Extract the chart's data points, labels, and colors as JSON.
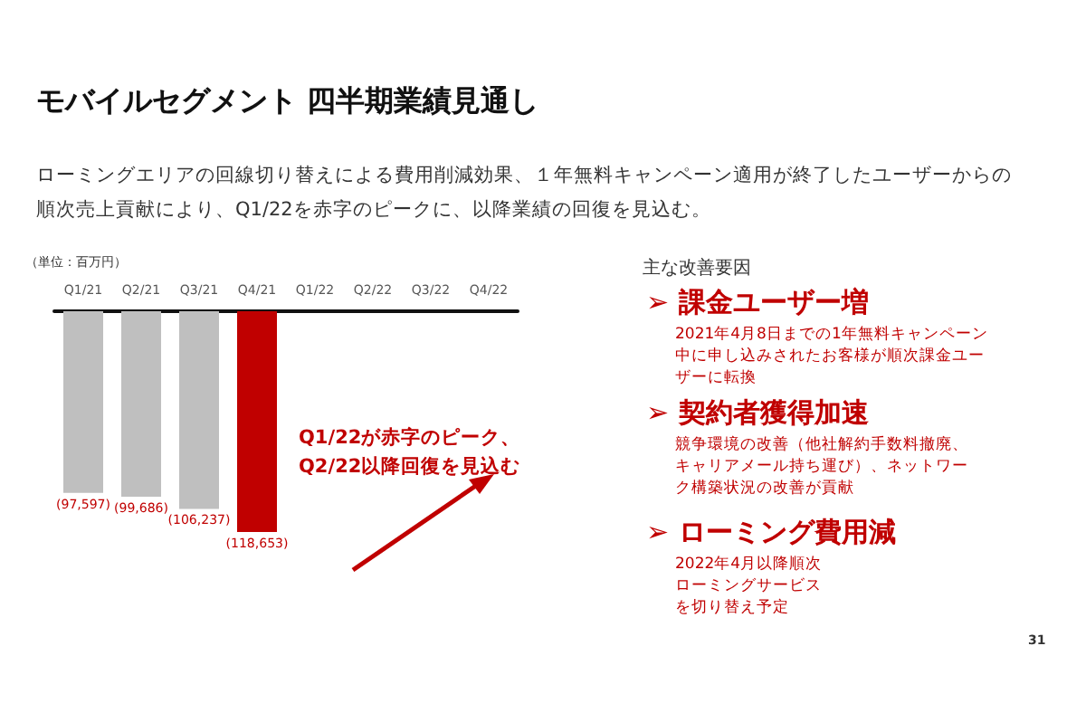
{
  "chart_data": {
    "type": "bar",
    "title": "モバイルセグメント 四半期業績見通し",
    "subtitle": "ローミングエリアの回線切り替えによる費用削減効果、１年無料キャンペーン適用が終了したユーザーからの順次売上貢献により、Q1/22を赤字のピークに、以降業績の回復を見込む。",
    "ylabel": "（単位：百万円）",
    "categories": [
      "Q1/21",
      "Q2/21",
      "Q3/21",
      "Q4/21",
      "Q1/22",
      "Q2/22",
      "Q3/22",
      "Q4/22"
    ],
    "values": [
      -97597,
      -99686,
      -106237,
      -118653,
      null,
      null,
      null,
      null
    ],
    "value_labels": [
      "(97,597)",
      "(99,686)",
      "(106,237)",
      "(118,653)",
      null,
      null,
      null,
      null
    ],
    "colors": [
      "#bfbfbf",
      "#bfbfbf",
      "#bfbfbf",
      "#c00000",
      null,
      null,
      null,
      null
    ],
    "grid": false,
    "annotations": [
      "Q1/22が赤字のピーク、Q2/22以降回復を見込む",
      "主な改善要因",
      "➢ 課金ユーザー増",
      "2021年4月8日までの1年無料キャンペーン中に申し込みされたお客様が順次課金ユーザーに転換",
      "➢ 契約者獲得加速",
      "競争環境の改善（他社解約手数料撤廃、キャリアメール持ち運び）、ネットワーク構築状況の改善が貢献",
      "➢ ローミング費用減",
      "2022年4月以降順次ローミングサービスを切り替え予定",
      "31"
    ]
  }
}
